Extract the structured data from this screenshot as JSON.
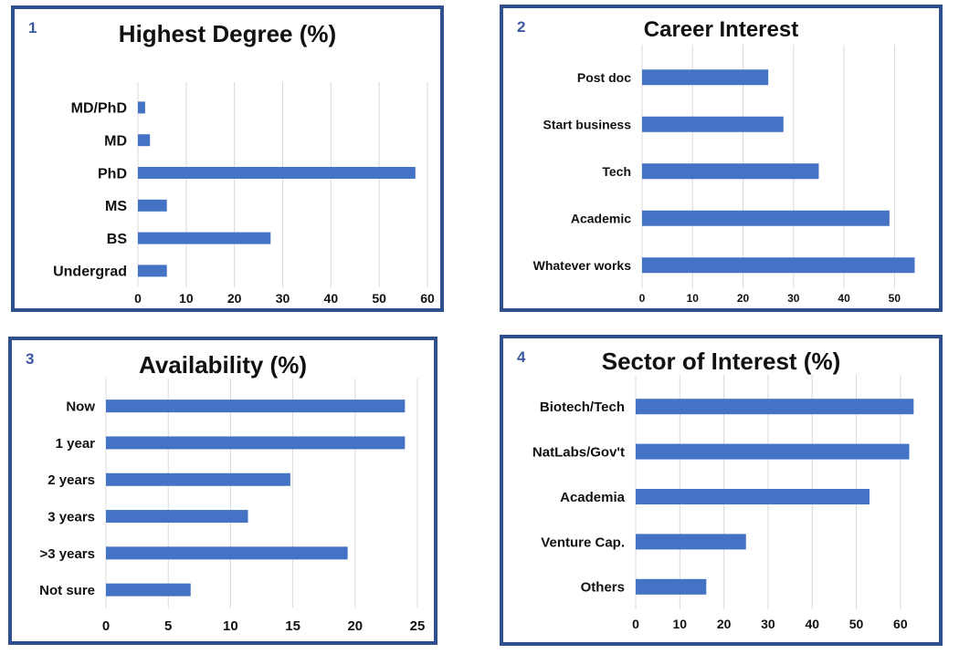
{
  "chart_data": [
    {
      "id": "p1",
      "number": "1",
      "type": "bar",
      "orientation": "horizontal",
      "title": "Highest Degree (%)",
      "categories": [
        "MD/PhD",
        "MD",
        "PhD",
        "MS",
        "BS",
        "Undergrad"
      ],
      "values": [
        1.5,
        2.5,
        57.5,
        6,
        27.5,
        6
      ],
      "xlim": [
        0,
        60
      ],
      "xticks": [
        0,
        10,
        20,
        30,
        40,
        50,
        60
      ],
      "grid": true,
      "color": "#4472c4"
    },
    {
      "id": "p2",
      "number": "2",
      "type": "bar",
      "orientation": "horizontal",
      "title": "Career Interest",
      "categories": [
        "Post doc",
        "Start business",
        "Tech",
        "Academic",
        "Whatever works"
      ],
      "values": [
        25,
        28,
        35,
        49,
        54
      ],
      "xlim": [
        0,
        55
      ],
      "xticks": [
        0,
        10,
        20,
        30,
        40,
        50
      ],
      "grid": true,
      "color": "#4472c4"
    },
    {
      "id": "p3",
      "number": "3",
      "type": "bar",
      "orientation": "horizontal",
      "title": "Availability (%)",
      "categories": [
        "Now",
        "1 year",
        "2 years",
        "3 years",
        ">3 years",
        "Not sure"
      ],
      "values": [
        24,
        24,
        14.8,
        11.4,
        19.4,
        6.8
      ],
      "xlim": [
        0,
        25
      ],
      "xticks": [
        0,
        5,
        10,
        15,
        20,
        25
      ],
      "grid": true,
      "color": "#4472c4"
    },
    {
      "id": "p4",
      "number": "4",
      "type": "bar",
      "orientation": "horizontal",
      "title": "Sector of Interest (%)",
      "categories": [
        "Biotech/Tech",
        "NatLabs/Gov't",
        "Academia",
        "Venture Cap.",
        "Others"
      ],
      "values": [
        63,
        62,
        53,
        25,
        16
      ],
      "xlim": [
        0,
        65
      ],
      "xticks": [
        0,
        10,
        20,
        30,
        40,
        50,
        60
      ],
      "grid": true,
      "color": "#4472c4"
    }
  ]
}
